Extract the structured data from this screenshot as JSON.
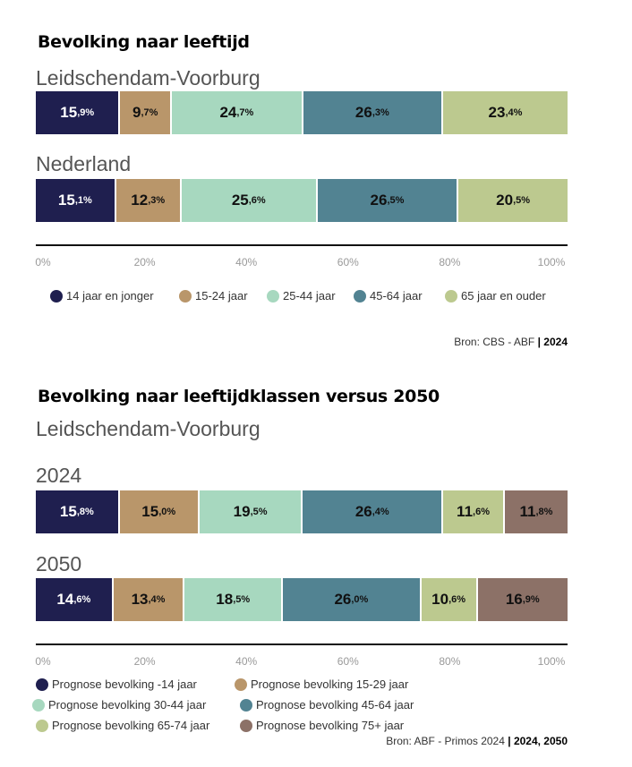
{
  "chart_data": [
    {
      "type": "stacked-bar",
      "title": "Bevolking naar leeftijd",
      "categories": [
        "Leidschendam-Voorburg",
        "Nederland"
      ],
      "series": [
        {
          "name": "14 jaar en jonger",
          "color": "#1f1f4f",
          "values": [
            15.9,
            15.1
          ]
        },
        {
          "name": "15-24 jaar",
          "color": "#b9966a",
          "values": [
            9.7,
            12.3
          ]
        },
        {
          "name": "25-44 jaar",
          "color": "#a7d8bf",
          "values": [
            24.7,
            25.6
          ]
        },
        {
          "name": "45-64 jaar",
          "color": "#528392",
          "values": [
            26.3,
            26.5
          ]
        },
        {
          "name": "65 jaar en ouder",
          "color": "#bcc98f",
          "values": [
            23.4,
            20.5
          ]
        }
      ],
      "xticks": [
        "0%",
        "20%",
        "40%",
        "60%",
        "80%",
        "100%"
      ],
      "xlim": [
        0,
        100
      ],
      "legend": "bottom",
      "source": "Bron: CBS - ABF",
      "source_year": "| 2024"
    },
    {
      "type": "stacked-bar",
      "title": "Bevolking naar leeftijdklassen versus 2050",
      "subtitle": "Leidschendam-Voorburg",
      "categories": [
        "2024",
        "2050"
      ],
      "series": [
        {
          "name": "Prognose bevolking -14 jaar",
          "color": "#1f1f4f",
          "values": [
            15.8,
            14.6
          ]
        },
        {
          "name": "Prognose bevolking 15-29 jaar",
          "color": "#b9966a",
          "values": [
            15.0,
            13.4
          ]
        },
        {
          "name": "Prognose bevolking 30-44 jaar",
          "color": "#a7d8bf",
          "values": [
            19.5,
            18.5
          ]
        },
        {
          "name": "Prognose bevolking 45-64 jaar",
          "color": "#528392",
          "values": [
            26.4,
            26.0
          ]
        },
        {
          "name": "Prognose bevolking 65-74 jaar",
          "color": "#bcc98f",
          "values": [
            11.6,
            10.6
          ]
        },
        {
          "name": "Prognose bevolking 75+ jaar",
          "color": "#8c7167",
          "values": [
            11.8,
            16.9
          ]
        }
      ],
      "xticks": [
        "0%",
        "20%",
        "40%",
        "60%",
        "80%",
        "100%"
      ],
      "xlim": [
        0,
        100
      ],
      "legend": "bottom",
      "source": "Bron: ABF - Primos 2024",
      "source_year": "| 2024, 2050"
    }
  ]
}
